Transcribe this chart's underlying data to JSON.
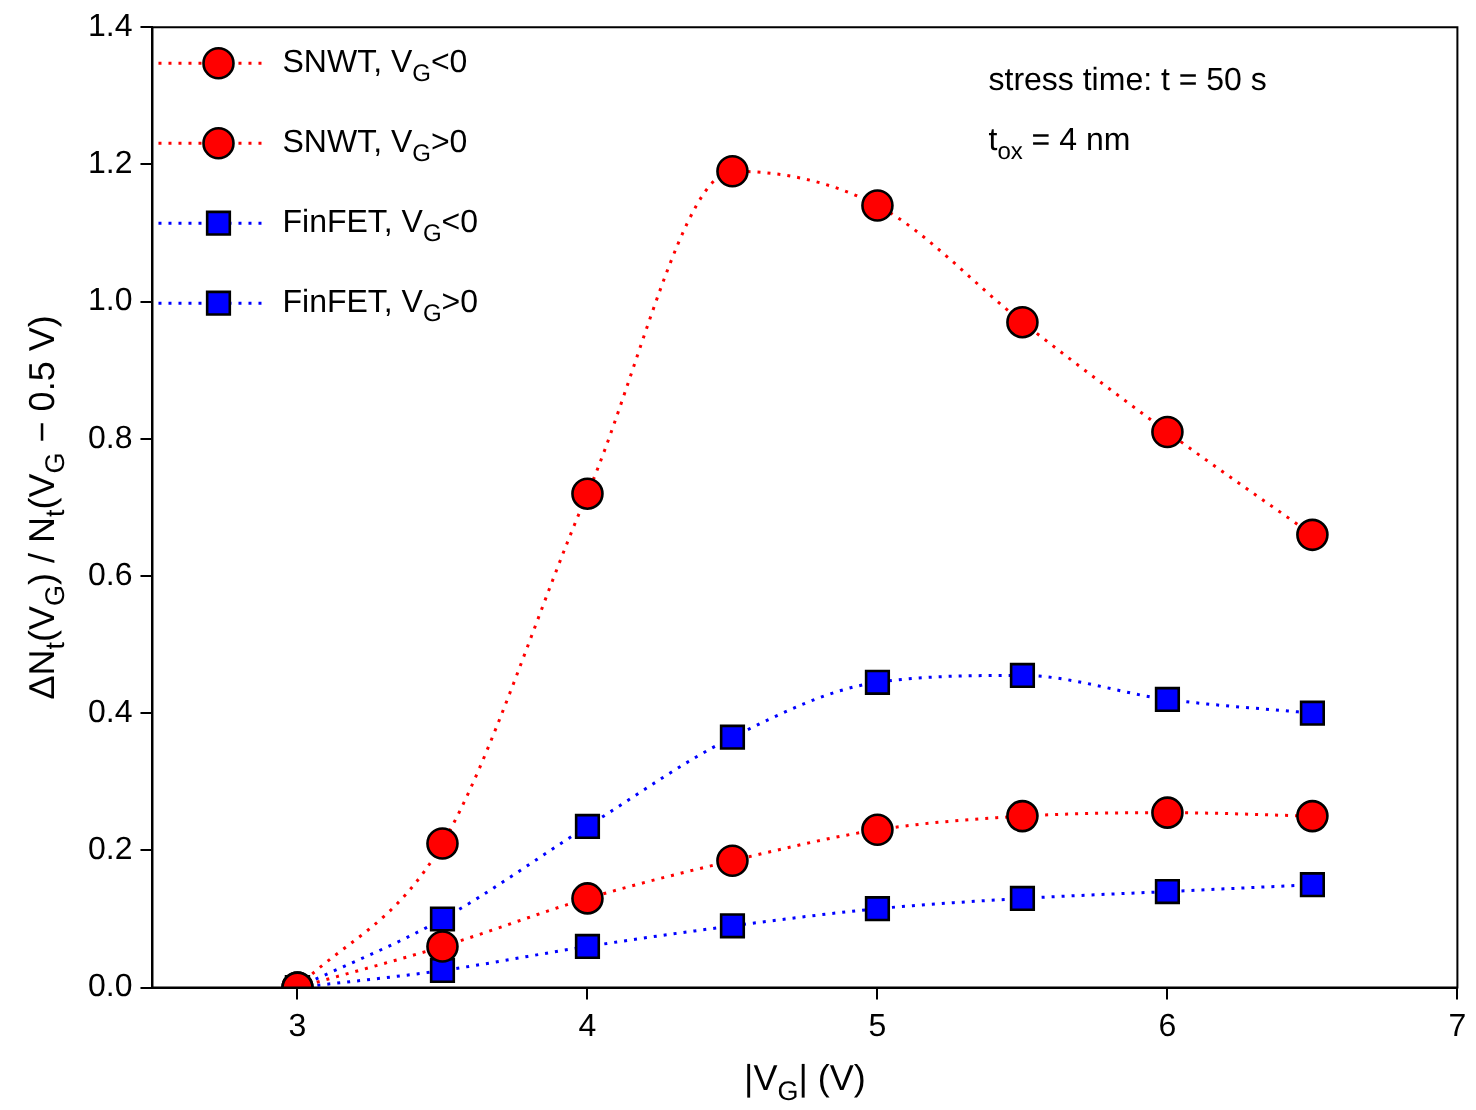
{
  "chart_data": {
    "type": "line",
    "xlabel": "|V$_{G}$| (V)",
    "ylabel": "ΔN$_{t}$(V$_{G}$) / N$_{t}$(V$_{G}$ − 0.5 V)",
    "x": [
      3,
      3.5,
      4,
      4.5,
      5,
      5.5,
      6,
      6.5
    ],
    "series": [
      {
        "name": "SNWT, V$_{G}$<0",
        "color": "#ff0000",
        "marker": "circle",
        "values": [
          0,
          0.21,
          0.72,
          1.19,
          1.14,
          0.97,
          0.81,
          0.66
        ]
      },
      {
        "name": "SNWT, V$_{G}$>0",
        "color": "#ff0000",
        "marker": "circle",
        "values": [
          0,
          0.06,
          0.13,
          0.185,
          0.23,
          0.25,
          0.255,
          0.25
        ]
      },
      {
        "name": "FinFET, V$_{G}$<0",
        "color": "#0000ff",
        "marker": "square",
        "values": [
          0,
          0.1,
          0.235,
          0.365,
          0.445,
          0.455,
          0.42,
          0.4
        ]
      },
      {
        "name": "FinFET, V$_{G}$>0",
        "color": "#0000ff",
        "marker": "square",
        "values": [
          0,
          0.025,
          0.06,
          0.09,
          0.115,
          0.13,
          0.14,
          0.15
        ]
      }
    ],
    "xlim": [
      2.5,
      7
    ],
    "xticks": [
      3,
      4,
      5,
      6,
      7
    ],
    "ylim": [
      0,
      1.4
    ],
    "yticks": [
      {
        "value": 0,
        "label": "0.0"
      },
      0.2,
      0.4,
      0.6,
      0.8,
      {
        "value": 1,
        "label": "1.0"
      },
      1.2,
      1.4
    ],
    "annotations": [
      "stress time: t = 50 s",
      "t$_{ox}$ = 4 nm"
    ],
    "grid": false,
    "legend": "top left",
    "line_style": "dotted"
  }
}
